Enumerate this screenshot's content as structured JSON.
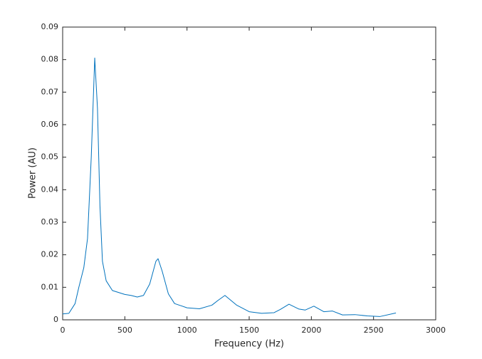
{
  "chart_data": {
    "type": "line",
    "x_label": "Frequency (Hz)",
    "y_label": "Power (AU)",
    "x": [
      0,
      50,
      100,
      130,
      170,
      200,
      230,
      258,
      280,
      300,
      320,
      350,
      400,
      500,
      550,
      600,
      650,
      700,
      750,
      767,
      800,
      850,
      900,
      1000,
      1100,
      1200,
      1250,
      1305,
      1400,
      1500,
      1600,
      1700,
      1750,
      1820,
      1900,
      1950,
      2020,
      2100,
      2170,
      2250,
      2350,
      2450,
      2550,
      2680
    ],
    "series": [
      {
        "color": "#0072bd",
        "values": [
          0.0018,
          0.002,
          0.005,
          0.01,
          0.016,
          0.025,
          0.05,
          0.0805,
          0.065,
          0.035,
          0.018,
          0.012,
          0.009,
          0.0078,
          0.0075,
          0.007,
          0.0075,
          0.011,
          0.018,
          0.0188,
          0.015,
          0.008,
          0.005,
          0.0037,
          0.0034,
          0.0045,
          0.006,
          0.0075,
          0.0045,
          0.0025,
          0.002,
          0.0022,
          0.0032,
          0.0048,
          0.0033,
          0.003,
          0.0042,
          0.0025,
          0.0027,
          0.0015,
          0.0016,
          0.0012,
          0.001,
          0.0021
        ]
      }
    ],
    "xlim": [
      0,
      3000
    ],
    "xticks": [
      0,
      500,
      1000,
      1500,
      2000,
      2500,
      3000
    ],
    "ylim": [
      0,
      0.09
    ],
    "yticks": [
      0,
      0.01,
      0.02,
      0.03,
      0.04,
      0.05,
      0.06,
      0.07,
      0.08,
      0.09
    ]
  }
}
